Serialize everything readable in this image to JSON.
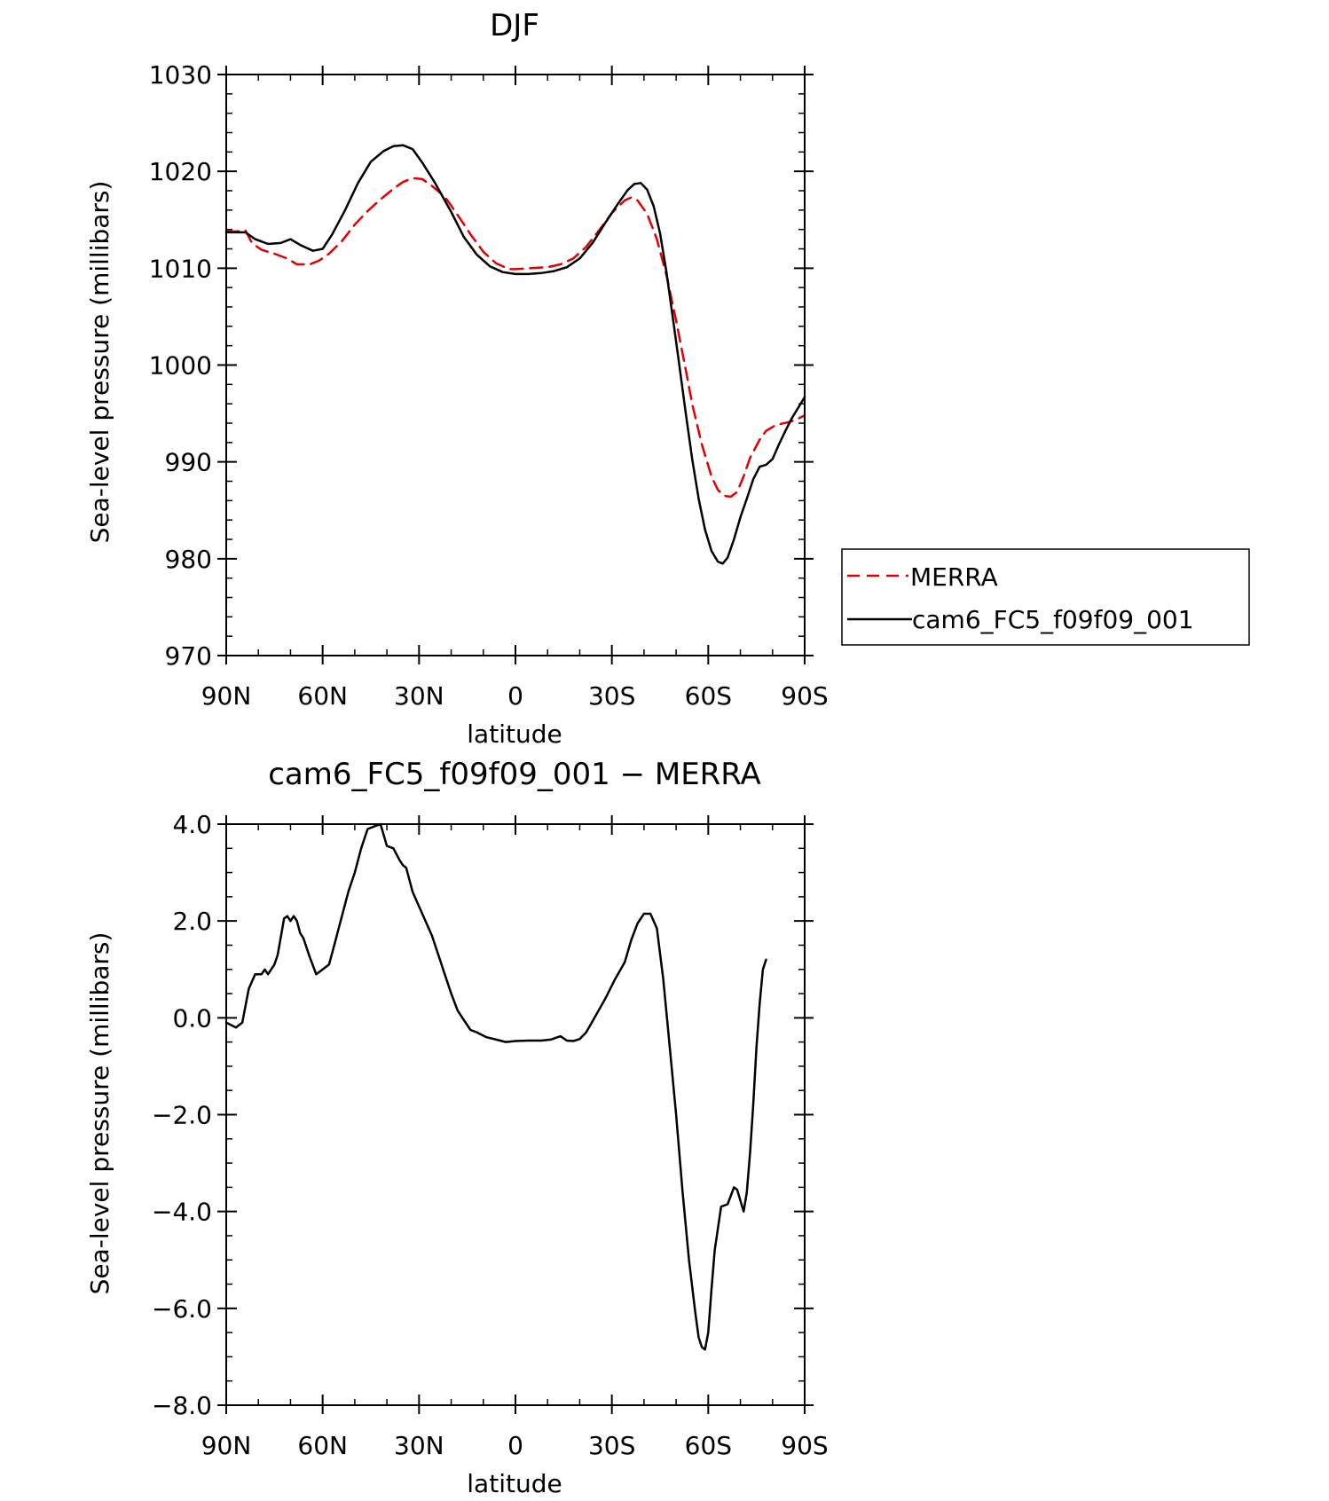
{
  "chart_data": [
    {
      "type": "line",
      "title": "DJF",
      "xlabel": "latitude",
      "ylabel": "Sea-level pressure (millibars)",
      "xlim": [
        90,
        -90
      ],
      "ylim": [
        970,
        1030
      ],
      "x_ticks": [
        90,
        60,
        30,
        0,
        -30,
        -60,
        -90
      ],
      "x_tick_labels": [
        "90N",
        "60N",
        "30N",
        "0",
        "30S",
        "60S",
        "90S"
      ],
      "y_ticks": [
        970,
        980,
        990,
        1000,
        1010,
        1020,
        1030
      ],
      "y_tick_labels": [
        "970",
        "980",
        "990",
        "1000",
        "1010",
        "1020",
        "1030"
      ],
      "grid": false,
      "legend_position": "right",
      "series": [
        {
          "name": "MERRA",
          "color": "#e00000",
          "dash": "dashed",
          "points": [
            [
              90,
              1013.8
            ],
            [
              87,
              1013.8
            ],
            [
              84,
              1013.9
            ],
            [
              82,
              1012.6
            ],
            [
              79,
              1011.9
            ],
            [
              75,
              1011.5
            ],
            [
              71,
              1011
            ],
            [
              68,
              1010.4
            ],
            [
              64,
              1010.4
            ],
            [
              61,
              1010.8
            ],
            [
              58,
              1011.5
            ],
            [
              54,
              1012.8
            ],
            [
              50,
              1014.5
            ],
            [
              46,
              1015.9
            ],
            [
              42,
              1017.1
            ],
            [
              38,
              1018.2
            ],
            [
              35,
              1018.9
            ],
            [
              32,
              1019.3
            ],
            [
              29,
              1019.2
            ],
            [
              26,
              1018.5
            ],
            [
              22,
              1017.4
            ],
            [
              18,
              1015.5
            ],
            [
              14,
              1013.5
            ],
            [
              10,
              1011.7
            ],
            [
              6,
              1010.5
            ],
            [
              2,
              1009.9
            ],
            [
              0,
              1009.9
            ],
            [
              -5,
              1010
            ],
            [
              -10,
              1010.1
            ],
            [
              -14,
              1010.4
            ],
            [
              -18,
              1011
            ],
            [
              -22,
              1012.2
            ],
            [
              -26,
              1013.9
            ],
            [
              -30,
              1015.7
            ],
            [
              -34,
              1017
            ],
            [
              -36,
              1017.3
            ],
            [
              -38,
              1017
            ],
            [
              -41,
              1015.6
            ],
            [
              -44,
              1013
            ],
            [
              -47,
              1009.3
            ],
            [
              -50,
              1004.6
            ],
            [
              -53,
              999.5
            ],
            [
              -55,
              996
            ],
            [
              -58,
              991.8
            ],
            [
              -61,
              988.5
            ],
            [
              -63,
              987.1
            ],
            [
              -65,
              986.5
            ],
            [
              -67,
              986.4
            ],
            [
              -69,
              986.9
            ],
            [
              -71,
              988.5
            ],
            [
              -73,
              990.4
            ],
            [
              -76,
              992.3
            ],
            [
              -78,
              993.2
            ],
            [
              -81,
              993.8
            ],
            [
              -85,
              994.1
            ],
            [
              -87,
              994.3
            ],
            [
              -90,
              994.8
            ]
          ]
        },
        {
          "name": "cam6_FC5_f09f09_001",
          "color": "#000000",
          "dash": "solid",
          "points": [
            [
              90,
              1013.7
            ],
            [
              87,
              1013.7
            ],
            [
              84,
              1013.7
            ],
            [
              81,
              1013
            ],
            [
              77,
              1012.5
            ],
            [
              73,
              1012.6
            ],
            [
              70,
              1013
            ],
            [
              67,
              1012.4
            ],
            [
              63,
              1011.8
            ],
            [
              60,
              1012
            ],
            [
              57,
              1013.5
            ],
            [
              53,
              1016
            ],
            [
              49,
              1018.8
            ],
            [
              45,
              1021
            ],
            [
              41,
              1022.1
            ],
            [
              38,
              1022.6
            ],
            [
              35,
              1022.7
            ],
            [
              32,
              1022.3
            ],
            [
              29,
              1020.9
            ],
            [
              25,
              1018.8
            ],
            [
              20,
              1015.8
            ],
            [
              16,
              1013.2
            ],
            [
              12,
              1011.4
            ],
            [
              8,
              1010.2
            ],
            [
              4,
              1009.6
            ],
            [
              0,
              1009.4
            ],
            [
              -4,
              1009.4
            ],
            [
              -8,
              1009.5
            ],
            [
              -12,
              1009.7
            ],
            [
              -16,
              1010.1
            ],
            [
              -20,
              1011
            ],
            [
              -24,
              1012.6
            ],
            [
              -28,
              1014.7
            ],
            [
              -32,
              1016.7
            ],
            [
              -35,
              1018.1
            ],
            [
              -37,
              1018.7
            ],
            [
              -39,
              1018.8
            ],
            [
              -41,
              1018.1
            ],
            [
              -43,
              1016.4
            ],
            [
              -45,
              1013.6
            ],
            [
              -47,
              1009.6
            ],
            [
              -49,
              1004.8
            ],
            [
              -51,
              1000
            ],
            [
              -53,
              995
            ],
            [
              -55,
              990.3
            ],
            [
              -57,
              986.2
            ],
            [
              -59,
              983
            ],
            [
              -61,
              980.8
            ],
            [
              -63,
              979.7
            ],
            [
              -64.5,
              979.5
            ],
            [
              -66,
              980.1
            ],
            [
              -68,
              982
            ],
            [
              -70,
              984.3
            ],
            [
              -72,
              986.2
            ],
            [
              -74,
              988.2
            ],
            [
              -76,
              989.5
            ],
            [
              -78,
              989.7
            ],
            [
              -80,
              990.3
            ],
            [
              -82,
              991.8
            ],
            [
              -84,
              993.2
            ],
            [
              -86,
              994.5
            ],
            [
              -88,
              995.6
            ],
            [
              -90,
              996.7
            ]
          ]
        }
      ]
    },
    {
      "type": "line",
      "title": "cam6_FC5_f09f09_001 − MERRA",
      "xlabel": "latitude",
      "ylabel": "Sea-level pressure (millibars)",
      "xlim": [
        90,
        -90
      ],
      "ylim": [
        -8,
        4
      ],
      "x_ticks": [
        90,
        60,
        30,
        0,
        -30,
        -60,
        -90
      ],
      "x_tick_labels": [
        "90N",
        "60N",
        "30N",
        "0",
        "30S",
        "60S",
        "90S"
      ],
      "y_ticks": [
        -8,
        -6,
        -4,
        -2,
        0,
        2,
        4
      ],
      "y_tick_labels": [
        "−8.0",
        "−6.0",
        "−4.0",
        "−2.0",
        "0.0",
        "2.0",
        "4.0"
      ],
      "grid": false,
      "series": [
        {
          "color": "#000000",
          "dash": "solid",
          "points": [
            [
              90,
              -0.1
            ],
            [
              87,
              -0.2
            ],
            [
              85,
              -0.1
            ],
            [
              83,
              0.6
            ],
            [
              81,
              0.9
            ],
            [
              79,
              0.9
            ],
            [
              78,
              1
            ],
            [
              77,
              0.9
            ],
            [
              75,
              1.1
            ],
            [
              74,
              1.3
            ],
            [
              72,
              2.05
            ],
            [
              71,
              2.1
            ],
            [
              70,
              2
            ],
            [
              69,
              2.1
            ],
            [
              68,
              2
            ],
            [
              67,
              1.75
            ],
            [
              66,
              1.65
            ],
            [
              64,
              1.25
            ],
            [
              62,
              0.9
            ],
            [
              60,
              1
            ],
            [
              58,
              1.1
            ],
            [
              56,
              1.6
            ],
            [
              54,
              2.1
            ],
            [
              52,
              2.6
            ],
            [
              50,
              3
            ],
            [
              48,
              3.5
            ],
            [
              46,
              3.9
            ],
            [
              44,
              3.95
            ],
            [
              42,
              4
            ],
            [
              40,
              3.55
            ],
            [
              38,
              3.5
            ],
            [
              36,
              3.25
            ],
            [
              35,
              3.15
            ],
            [
              34,
              3.1
            ],
            [
              32,
              2.6
            ],
            [
              30,
              2.3
            ],
            [
              28,
              2
            ],
            [
              26,
              1.7
            ],
            [
              24,
              1.3
            ],
            [
              22,
              0.9
            ],
            [
              20,
              0.5
            ],
            [
              18,
              0.15
            ],
            [
              16,
              -0.05
            ],
            [
              14,
              -0.25
            ],
            [
              12,
              -0.3
            ],
            [
              9,
              -0.4
            ],
            [
              6,
              -0.45
            ],
            [
              3,
              -0.5
            ],
            [
              0,
              -0.48
            ],
            [
              -4,
              -0.47
            ],
            [
              -8,
              -0.47
            ],
            [
              -11,
              -0.45
            ],
            [
              -14,
              -0.38
            ],
            [
              -16,
              -0.47
            ],
            [
              -18,
              -0.48
            ],
            [
              -20,
              -0.44
            ],
            [
              -22,
              -0.3
            ],
            [
              -25,
              0.05
            ],
            [
              -28,
              0.4
            ],
            [
              -31,
              0.8
            ],
            [
              -34,
              1.15
            ],
            [
              -36,
              1.6
            ],
            [
              -38,
              1.95
            ],
            [
              -40,
              2.15
            ],
            [
              -42,
              2.15
            ],
            [
              -44,
              1.85
            ],
            [
              -46,
              0.8
            ],
            [
              -48,
              -0.6
            ],
            [
              -50,
              -2
            ],
            [
              -52,
              -3.6
            ],
            [
              -54,
              -5
            ],
            [
              -56,
              -6.1
            ],
            [
              -57,
              -6.6
            ],
            [
              -58,
              -6.8
            ],
            [
              -59,
              -6.85
            ],
            [
              -60,
              -6.5
            ],
            [
              -61,
              -5.6
            ],
            [
              -62,
              -4.8
            ],
            [
              -64,
              -3.9
            ],
            [
              -66,
              -3.85
            ],
            [
              -68,
              -3.5
            ],
            [
              -69,
              -3.55
            ],
            [
              -71,
              -4
            ],
            [
              -72,
              -3.6
            ],
            [
              -73,
              -2.8
            ],
            [
              -74,
              -1.8
            ],
            [
              -75,
              -0.6
            ],
            [
              -76,
              0.3
            ],
            [
              -77,
              1
            ],
            [
              -78,
              1.2
            ]
          ]
        }
      ]
    }
  ]
}
